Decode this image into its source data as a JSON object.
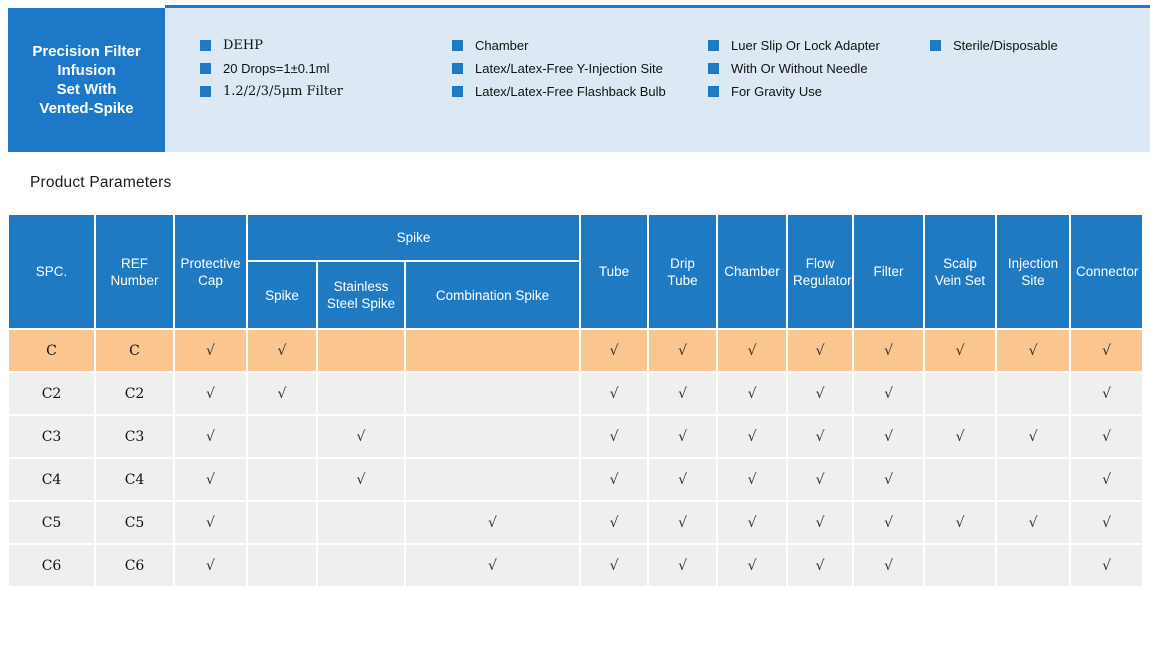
{
  "colors": {
    "header-blue": "#1f7ac1",
    "box-blue": "#1d79c8",
    "band-blue": "#dce9f4",
    "bullet-blue": "#1e7ac4",
    "highlight-orange": "#fac58f",
    "row-gray": "#efeff0",
    "check-color": "#2e2e2e"
  },
  "banner": {
    "title_lines": [
      "Precision Filter",
      "Infusion",
      "Set With",
      "Vented-Spike"
    ],
    "feature_columns": [
      {
        "items": [
          "DEHP",
          "20 Drops=1±0.1ml",
          "1.2/2/3/5μm Filter"
        ]
      },
      {
        "items": [
          "Chamber",
          "Latex/Latex-Free Y-Injection Site",
          "Latex/Latex-Free Flashback Bulb"
        ]
      },
      {
        "items": [
          "Luer Slip Or Lock Adapter",
          "With Or Without Needle",
          "For Gravity Use"
        ]
      },
      {
        "items": [
          "Sterile/Disposable"
        ]
      }
    ]
  },
  "section": {
    "title": "Product Parameters"
  },
  "table": {
    "check_symbol": "√",
    "headers": {
      "spc": "SPC.",
      "ref": "REF Number",
      "protective_cap": "Protective Cap",
      "spike_group": "Spike",
      "spike": "Spike",
      "stainless_steel_spike": "Stainless Steel Spike",
      "combination_spike": "Combination Spike",
      "tube": "Tube",
      "drip_tube": "Drip Tube",
      "chamber": "Chamber",
      "flow_regulator": "Flow Regulator",
      "filter": "Filter",
      "scalp_vein_set": "Scalp Vein Set",
      "injection_site": "Injection Site",
      "connector": "Connector"
    },
    "check_columns": [
      "protective_cap",
      "spike",
      "stainless_steel_spike",
      "combination_spike",
      "tube",
      "drip_tube",
      "chamber",
      "flow_regulator",
      "filter",
      "scalp_vein_set",
      "injection_site",
      "connector"
    ],
    "rows": [
      {
        "spc": "C",
        "ref": "C",
        "highlight": true,
        "checks": [
          1,
          1,
          0,
          0,
          1,
          1,
          1,
          1,
          1,
          1,
          1,
          1
        ]
      },
      {
        "spc": "C2",
        "ref": "C2",
        "highlight": false,
        "checks": [
          1,
          1,
          0,
          0,
          1,
          1,
          1,
          1,
          1,
          0,
          0,
          1
        ]
      },
      {
        "spc": "C3",
        "ref": "C3",
        "highlight": false,
        "checks": [
          1,
          0,
          1,
          0,
          1,
          1,
          1,
          1,
          1,
          1,
          1,
          1
        ]
      },
      {
        "spc": "C4",
        "ref": "C4",
        "highlight": false,
        "checks": [
          1,
          0,
          1,
          0,
          1,
          1,
          1,
          1,
          1,
          0,
          0,
          1
        ]
      },
      {
        "spc": "C5",
        "ref": "C5",
        "highlight": false,
        "checks": [
          1,
          0,
          0,
          1,
          1,
          1,
          1,
          1,
          1,
          1,
          1,
          1
        ]
      },
      {
        "spc": "C6",
        "ref": "C6",
        "highlight": false,
        "checks": [
          1,
          0,
          0,
          1,
          1,
          1,
          1,
          1,
          1,
          0,
          0,
          1
        ]
      }
    ]
  }
}
